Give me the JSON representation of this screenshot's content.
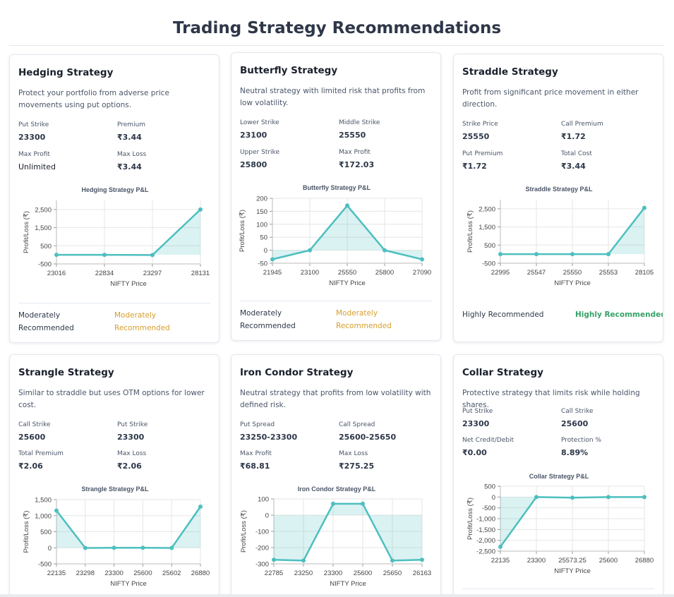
{
  "page": {
    "title": "Trading Strategy Recommendations"
  },
  "colors": {
    "line": "#4dbfbf",
    "fill": "rgba(77,191,191,0.2)",
    "moderate": "#d69e2e",
    "high": "#38a169"
  },
  "cards": [
    {
      "title": "Hedging Strategy",
      "description": "Protect your portfolio from adverse price movements using put options.",
      "params": [
        {
          "label": "Put Strike",
          "value": "23300"
        },
        {
          "label": "Premium",
          "value": "₹3.44"
        },
        {
          "label": "Max Profit",
          "value": "Unlimited"
        },
        {
          "label": "Max Loss",
          "value": "₹3.44"
        }
      ],
      "recommendation": {
        "label": "Moderately Recommended",
        "value": "Moderately Recommended",
        "level": "moderate"
      }
    },
    {
      "title": "Butterfly Strategy",
      "description": "Neutral strategy with limited risk that profits from low volatility.",
      "params": [
        {
          "label": "Lower Strike",
          "value": "23100"
        },
        {
          "label": "Middle Strike",
          "value": "25550"
        },
        {
          "label": "Upper Strike",
          "value": "25800"
        },
        {
          "label": "Max Profit",
          "value": "₹172.03"
        }
      ],
      "recommendation": {
        "label": "Moderately Recommended",
        "value": "Moderately Recommended",
        "level": "moderate"
      }
    },
    {
      "title": "Straddle Strategy",
      "description": "Profit from significant price movement in either direction.",
      "params": [
        {
          "label": "Strike Price",
          "value": "25550"
        },
        {
          "label": "Call Premium",
          "value": "₹1.72"
        },
        {
          "label": "Put Premium",
          "value": "₹1.72"
        },
        {
          "label": "Total Cost",
          "value": "₹3.44"
        }
      ],
      "recommendation": {
        "label": "Highly Recommended",
        "value": "Highly Recommended",
        "level": "high"
      }
    },
    {
      "title": "Strangle Strategy",
      "description": "Similar to straddle but uses OTM options for lower cost.",
      "params": [
        {
          "label": "Call Strike",
          "value": "25600"
        },
        {
          "label": "Put Strike",
          "value": "23300"
        },
        {
          "label": "Total Premium",
          "value": "₹2.06"
        },
        {
          "label": "Max Loss",
          "value": "₹2.06"
        }
      ]
    },
    {
      "title": "Iron Condor Strategy",
      "description": "Neutral strategy that profits from low volatility with defined risk.",
      "params": [
        {
          "label": "Put Spread",
          "value": "23250-23300"
        },
        {
          "label": "Call Spread",
          "value": "25600-25650"
        },
        {
          "label": "Max Profit",
          "value": "₹68.81"
        },
        {
          "label": "Max Loss",
          "value": "₹275.25"
        }
      ]
    },
    {
      "title": "Collar Strategy",
      "description": "Protective strategy that limits risk while holding shares.",
      "params": [
        {
          "label": "Put Strike",
          "value": "23300"
        },
        {
          "label": "Call Strike",
          "value": "25600"
        },
        {
          "label": "Net Credit/Debit",
          "value": "₹0.00"
        },
        {
          "label": "Protection %",
          "value": "8.89%"
        }
      ]
    }
  ],
  "chart_data": [
    {
      "type": "line",
      "title": "Hedging Strategy P&L",
      "xlabel": "NIFTY Price",
      "ylabel": "Profit/Loss (₹)",
      "categories": [
        "23016",
        "22834",
        "23297",
        "28131"
      ],
      "values": [
        0,
        0,
        -10,
        2500
      ],
      "yticks": [
        2500,
        1500,
        500,
        -500
      ],
      "ytick_labels": [
        "2,500",
        "1,500",
        "500",
        "-500"
      ],
      "ylim": [
        -500,
        3000
      ],
      "grid": true
    },
    {
      "type": "line",
      "title": "Butterfly Strategy P&L",
      "xlabel": "NIFTY Price",
      "ylabel": "Profit/Loss (₹)",
      "categories": [
        "21945",
        "23100",
        "25550",
        "25800",
        "27090"
      ],
      "values": [
        -35,
        0,
        172,
        0,
        -35
      ],
      "yticks": [
        200,
        150,
        100,
        50,
        0,
        -50
      ],
      "ytick_labels": [
        "200",
        "150",
        "100",
        "50",
        "0",
        "-50"
      ],
      "ylim": [
        -50,
        200
      ],
      "grid": true
    },
    {
      "type": "line",
      "title": "Straddle Strategy P&L",
      "xlabel": "NIFTY Price",
      "ylabel": "Profit/Loss (₹)",
      "categories": [
        "22995",
        "25547",
        "25550",
        "25553",
        "28105"
      ],
      "values": [
        0,
        0,
        0,
        0,
        2550
      ],
      "yticks": [
        2500,
        1500,
        500,
        -500
      ],
      "ytick_labels": [
        "2,500",
        "1,500",
        "500",
        "-500"
      ],
      "ylim": [
        -500,
        3000
      ],
      "grid": true
    },
    {
      "type": "line",
      "title": "Strangle Strategy P&L",
      "xlabel": "NIFTY Price",
      "ylabel": "Profit/Loss (₹)",
      "categories": [
        "22135",
        "23298",
        "23300",
        "25600",
        "25602",
        "26880"
      ],
      "values": [
        1160,
        -5,
        0,
        0,
        -5,
        1280
      ],
      "yticks": [
        1500,
        1000,
        500,
        0,
        -500
      ],
      "ytick_labels": [
        "1,500",
        "1,000",
        "500",
        "0",
        "-500"
      ],
      "ylim": [
        -500,
        1500
      ],
      "grid": true
    },
    {
      "type": "line",
      "title": "Iron Condor Strategy P&L",
      "xlabel": "NIFTY Price",
      "ylabel": "Profit/Loss (₹)",
      "categories": [
        "22785",
        "23250",
        "23300",
        "25600",
        "25650",
        "26163"
      ],
      "values": [
        -275,
        -280,
        70,
        70,
        -280,
        -275
      ],
      "yticks": [
        100,
        0,
        -100,
        -200,
        -300
      ],
      "ytick_labels": [
        "100",
        "0",
        "-100",
        "-200",
        "-300"
      ],
      "ylim": [
        -300,
        100
      ],
      "grid": true
    },
    {
      "type": "line",
      "title": "Collar Strategy P&L",
      "xlabel": "NIFTY Price",
      "ylabel": "Profit/Loss (₹)",
      "categories": [
        "22135",
        "23300",
        "25573.25",
        "25600",
        "26880"
      ],
      "values": [
        -2300,
        0,
        -30,
        0,
        0
      ],
      "yticks": [
        500,
        0,
        -500,
        -1000,
        -1500,
        -2000,
        -2500
      ],
      "ytick_labels": [
        "500",
        "0",
        "-500",
        "-1,000",
        "-1,500",
        "-2,000",
        "-2,500"
      ],
      "ylim": [
        -2500,
        500
      ],
      "grid": true
    }
  ]
}
